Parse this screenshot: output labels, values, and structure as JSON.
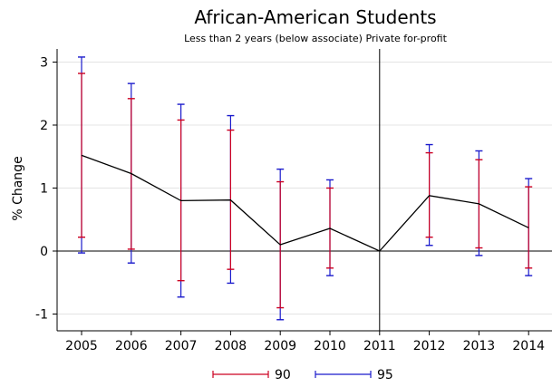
{
  "chart_data": {
    "type": "line",
    "title": "African-American Students",
    "subtitle": "Less than 2 years (below associate) Private for-profit",
    "xlabel": "",
    "ylabel": "% Change",
    "categories": [
      "2005",
      "2006",
      "2007",
      "2008",
      "2009",
      "2010",
      "2011",
      "2012",
      "2013",
      "2014"
    ],
    "ylim": [
      -1.2,
      3.2
    ],
    "yticks": [
      -1,
      0,
      1,
      2,
      3
    ],
    "reference_line_x": "2011",
    "reference_line_y": 0,
    "grid": "horizontal",
    "legend_position": "bottom",
    "series": [
      {
        "name": "",
        "color": "#000000",
        "values": [
          1.52,
          1.23,
          0.8,
          0.81,
          0.1,
          0.36,
          0.0,
          0.88,
          0.75,
          0.37
        ]
      }
    ],
    "intervals": [
      {
        "name": "90",
        "color": "#cc0022",
        "low": [
          0.22,
          0.03,
          -0.47,
          -0.29,
          -0.9,
          -0.27,
          0.0,
          0.22,
          0.05,
          -0.27
        ],
        "high": [
          2.82,
          2.42,
          2.08,
          1.92,
          1.1,
          1.0,
          0.0,
          1.56,
          1.45,
          1.02
        ]
      },
      {
        "name": "95",
        "color": "#1a1acc",
        "low": [
          -0.03,
          -0.19,
          -0.73,
          -0.51,
          -1.09,
          -0.39,
          0.0,
          0.09,
          -0.07,
          -0.39
        ],
        "high": [
          3.08,
          2.66,
          2.33,
          2.15,
          1.3,
          1.13,
          0.0,
          1.69,
          1.59,
          1.15
        ]
      }
    ]
  }
}
